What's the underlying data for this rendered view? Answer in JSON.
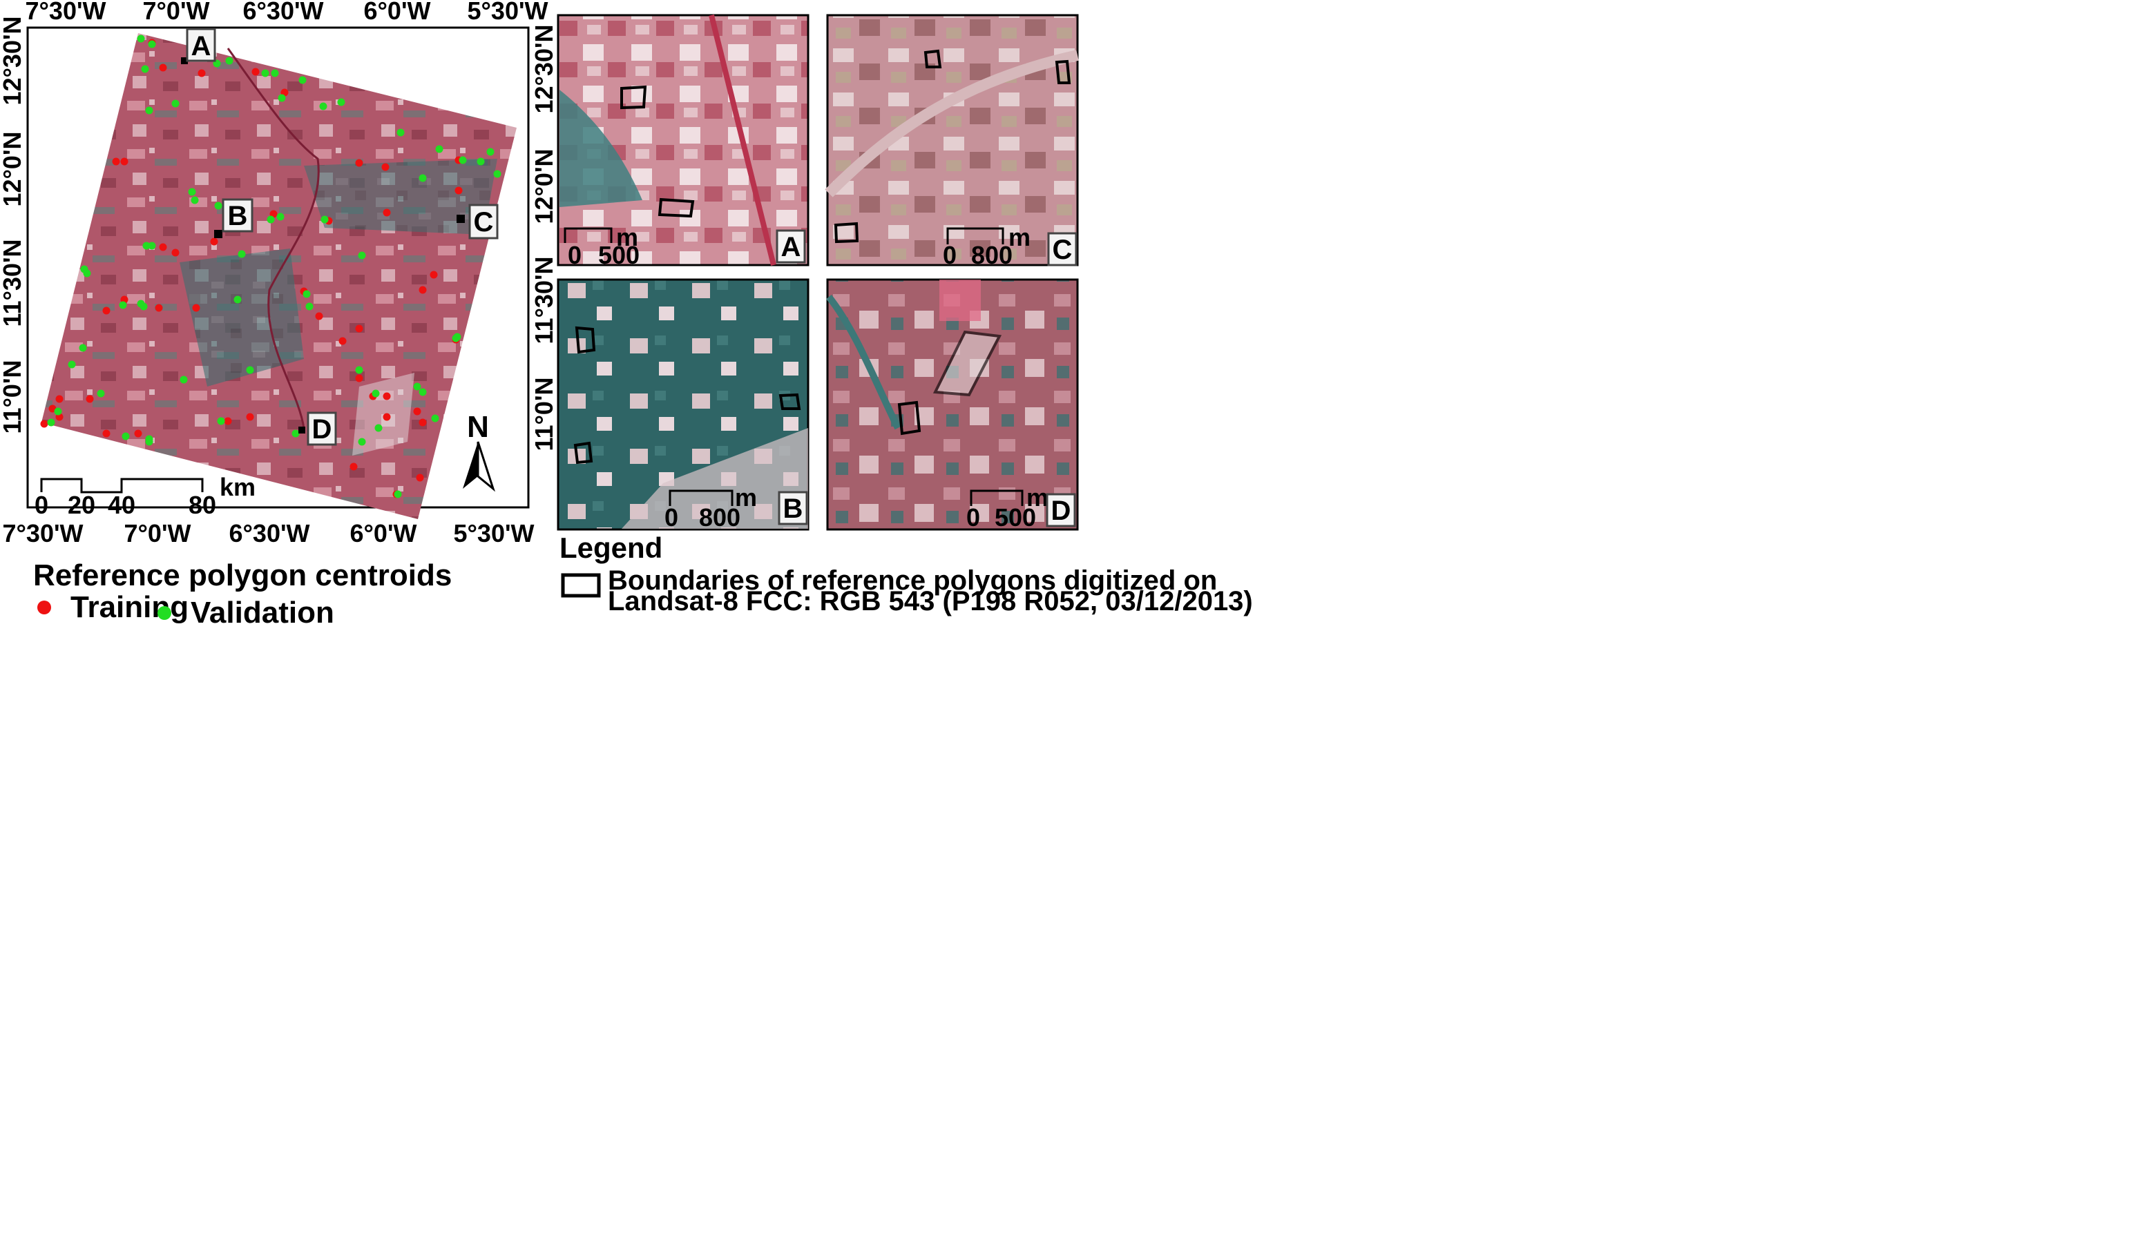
{
  "main_map": {
    "top_ticks": [
      "7°30'W",
      "7°0'W",
      "6°30'W",
      "6°0'W",
      "5°30'W"
    ],
    "bottom_ticks": [
      "7°30'W",
      "7°0'W",
      "6°30'W",
      "6°0'W",
      "5°30'W"
    ],
    "left_ticks": [
      "12°30'N",
      "12°0'N",
      "11°30'N",
      "11°0'N"
    ],
    "right_ticks": [
      "12°30'N",
      "12°0'N",
      "11°30'N",
      "11°0'N"
    ],
    "site_labels": [
      "A",
      "B",
      "C",
      "D"
    ],
    "scalebar": {
      "values": [
        "0",
        "20",
        "40",
        "80"
      ],
      "unit": "km"
    },
    "north_label": "N"
  },
  "insets": [
    {
      "letter": "A",
      "scale_values": [
        "0",
        "500"
      ],
      "scale_unit": "m"
    },
    {
      "letter": "C",
      "scale_values": [
        "0",
        "800"
      ],
      "scale_unit": "m"
    },
    {
      "letter": "B",
      "scale_values": [
        "0",
        "800"
      ],
      "scale_unit": "m"
    },
    {
      "letter": "D",
      "scale_values": [
        "0",
        "500"
      ],
      "scale_unit": "m"
    }
  ],
  "legend": {
    "title": "Reference polygon centroids",
    "training_label": "Training",
    "validation_label": "Validation",
    "legend_heading": "Legend",
    "polygon_line1": "Boundaries of reference polygons digitized on",
    "polygon_line2": "Landsat-8 FCC: RGB 543 (P198 R052, 03/12/2013)"
  },
  "colors": {
    "training": "#ee1111",
    "validation": "#22dd22",
    "imagery_red": "#b0576a",
    "imagery_teal": "#3d7f80",
    "imagery_light": "#e7d0d4"
  }
}
